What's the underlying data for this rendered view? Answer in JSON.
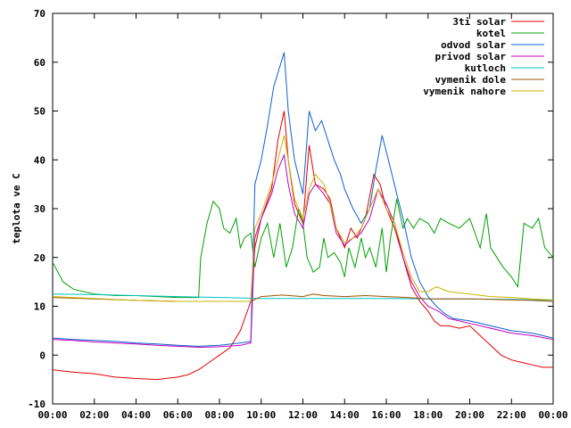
{
  "chart_data": {
    "type": "line",
    "title": "",
    "xlabel": "",
    "ylabel": "teplota ve C",
    "xlim": [
      0,
      24
    ],
    "ylim": [
      -10,
      70
    ],
    "grid": false,
    "legend_position": "top-right",
    "x_ticks": [
      "00:00",
      "02:00",
      "04:00",
      "06:00",
      "08:00",
      "10:00",
      "12:00",
      "14:00",
      "16:00",
      "18:00",
      "20:00",
      "22:00",
      "00:00"
    ],
    "y_ticks": [
      -10,
      0,
      10,
      20,
      30,
      40,
      50,
      60,
      70
    ],
    "series": [
      {
        "name": "3ti solar",
        "color": "#e00000",
        "points": [
          [
            0,
            -3
          ],
          [
            1,
            -3.5
          ],
          [
            2,
            -3.8
          ],
          [
            3,
            -4.5
          ],
          [
            4,
            -4.8
          ],
          [
            5,
            -5
          ],
          [
            6,
            -4.5
          ],
          [
            6.5,
            -4
          ],
          [
            7,
            -3
          ],
          [
            7.5,
            -1.5
          ],
          [
            8,
            0
          ],
          [
            8.5,
            1.5
          ],
          [
            9,
            5
          ],
          [
            9.5,
            11
          ],
          [
            9.7,
            22
          ],
          [
            10,
            28
          ],
          [
            10.5,
            34
          ],
          [
            10.8,
            44
          ],
          [
            11.1,
            50
          ],
          [
            11.3,
            40
          ],
          [
            11.6,
            31
          ],
          [
            12,
            27
          ],
          [
            12.3,
            43
          ],
          [
            12.6,
            35
          ],
          [
            13,
            34
          ],
          [
            13.3,
            32
          ],
          [
            13.6,
            26
          ],
          [
            14,
            22
          ],
          [
            14.3,
            26
          ],
          [
            14.6,
            24
          ],
          [
            15,
            28
          ],
          [
            15.4,
            37
          ],
          [
            15.7,
            35
          ],
          [
            16,
            30
          ],
          [
            16.4,
            26
          ],
          [
            16.8,
            20
          ],
          [
            17.2,
            14
          ],
          [
            17.6,
            11
          ],
          [
            18,
            9
          ],
          [
            18.3,
            7
          ],
          [
            18.6,
            6
          ],
          [
            19,
            6
          ],
          [
            19.5,
            5.5
          ],
          [
            20,
            6
          ],
          [
            20.5,
            4
          ],
          [
            21,
            2
          ],
          [
            21.5,
            0
          ],
          [
            22,
            -1
          ],
          [
            22.5,
            -1.5
          ],
          [
            23,
            -2
          ],
          [
            23.5,
            -2.5
          ],
          [
            24,
            -2.5
          ]
        ]
      },
      {
        "name": "kotel",
        "color": "#00a000",
        "points": [
          [
            0,
            19
          ],
          [
            0.5,
            15
          ],
          [
            1,
            13.5
          ],
          [
            2,
            12.5
          ],
          [
            3,
            12.2
          ],
          [
            4,
            12.2
          ],
          [
            5,
            12
          ],
          [
            6,
            11.8
          ],
          [
            7,
            11.8
          ],
          [
            7.1,
            20
          ],
          [
            7.4,
            27
          ],
          [
            7.7,
            31.5
          ],
          [
            8,
            30
          ],
          [
            8.2,
            26
          ],
          [
            8.5,
            25
          ],
          [
            8.8,
            28
          ],
          [
            9,
            22
          ],
          [
            9.2,
            24
          ],
          [
            9.5,
            25
          ],
          [
            9.7,
            18
          ],
          [
            10,
            24
          ],
          [
            10.3,
            27
          ],
          [
            10.6,
            20
          ],
          [
            10.9,
            27
          ],
          [
            11.2,
            18
          ],
          [
            11.5,
            22
          ],
          [
            11.8,
            30
          ],
          [
            12,
            27
          ],
          [
            12.2,
            20
          ],
          [
            12.5,
            17
          ],
          [
            12.8,
            18
          ],
          [
            13,
            24
          ],
          [
            13.2,
            20
          ],
          [
            13.5,
            21
          ],
          [
            13.8,
            19
          ],
          [
            14,
            16
          ],
          [
            14.2,
            22
          ],
          [
            14.5,
            18
          ],
          [
            14.8,
            24
          ],
          [
            15,
            20
          ],
          [
            15.2,
            22
          ],
          [
            15.5,
            18
          ],
          [
            15.8,
            26
          ],
          [
            16,
            17
          ],
          [
            16.2,
            24
          ],
          [
            16.5,
            32
          ],
          [
            16.8,
            26
          ],
          [
            17,
            28
          ],
          [
            17.3,
            26
          ],
          [
            17.6,
            28
          ],
          [
            18,
            27
          ],
          [
            18.3,
            25
          ],
          [
            18.6,
            28
          ],
          [
            19,
            27
          ],
          [
            19.5,
            26
          ],
          [
            20,
            28
          ],
          [
            20.5,
            22
          ],
          [
            20.8,
            29
          ],
          [
            21,
            22
          ],
          [
            21.3,
            20
          ],
          [
            21.6,
            18
          ],
          [
            22,
            16
          ],
          [
            22.3,
            14
          ],
          [
            22.6,
            27
          ],
          [
            23,
            26
          ],
          [
            23.3,
            28
          ],
          [
            23.6,
            22
          ],
          [
            24,
            20
          ]
        ]
      },
      {
        "name": "odvod solar",
        "color": "#1060d0",
        "points": [
          [
            0,
            3.5
          ],
          [
            1,
            3.2
          ],
          [
            2,
            3
          ],
          [
            3,
            2.8
          ],
          [
            4,
            2.5
          ],
          [
            5,
            2.3
          ],
          [
            6,
            2
          ],
          [
            7,
            1.8
          ],
          [
            8,
            2
          ],
          [
            9,
            2.5
          ],
          [
            9.5,
            2.8
          ],
          [
            9.7,
            35
          ],
          [
            10,
            40
          ],
          [
            10.3,
            47
          ],
          [
            10.6,
            55
          ],
          [
            11.1,
            62
          ],
          [
            11.3,
            50
          ],
          [
            11.6,
            40
          ],
          [
            12,
            33
          ],
          [
            12.3,
            50
          ],
          [
            12.6,
            46
          ],
          [
            12.9,
            48
          ],
          [
            13.2,
            44
          ],
          [
            13.5,
            40
          ],
          [
            13.8,
            37
          ],
          [
            14,
            34
          ],
          [
            14.4,
            30
          ],
          [
            14.8,
            27
          ],
          [
            15.2,
            30
          ],
          [
            15.5,
            38
          ],
          [
            15.8,
            45
          ],
          [
            16.1,
            40
          ],
          [
            16.5,
            33
          ],
          [
            16.8,
            28
          ],
          [
            17.2,
            20
          ],
          [
            17.6,
            15
          ],
          [
            18,
            12
          ],
          [
            18.4,
            10
          ],
          [
            18.8,
            8.5
          ],
          [
            19.2,
            7.5
          ],
          [
            20,
            7
          ],
          [
            21,
            6
          ],
          [
            22,
            5
          ],
          [
            23,
            4.5
          ],
          [
            24,
            3.5
          ]
        ]
      },
      {
        "name": "privod solar",
        "color": "#c000c0",
        "points": [
          [
            0,
            3.2
          ],
          [
            1,
            3
          ],
          [
            2,
            2.7
          ],
          [
            3,
            2.5
          ],
          [
            4,
            2.3
          ],
          [
            5,
            2
          ],
          [
            6,
            1.8
          ],
          [
            7,
            1.6
          ],
          [
            8,
            1.7
          ],
          [
            9,
            2
          ],
          [
            9.5,
            2.5
          ],
          [
            9.7,
            24
          ],
          [
            10,
            28
          ],
          [
            10.5,
            33
          ],
          [
            10.8,
            38
          ],
          [
            11.1,
            41
          ],
          [
            11.3,
            35
          ],
          [
            11.6,
            29
          ],
          [
            12,
            26
          ],
          [
            12.3,
            33
          ],
          [
            12.6,
            35
          ],
          [
            13,
            33
          ],
          [
            13.3,
            31
          ],
          [
            13.6,
            25
          ],
          [
            14,
            22.5
          ],
          [
            14.4,
            24
          ],
          [
            14.8,
            25
          ],
          [
            15.2,
            28
          ],
          [
            15.6,
            34
          ],
          [
            16,
            31
          ],
          [
            16.4,
            27
          ],
          [
            16.8,
            20
          ],
          [
            17.2,
            15
          ],
          [
            17.6,
            12
          ],
          [
            18,
            10
          ],
          [
            18.5,
            9
          ],
          [
            19,
            7.5
          ],
          [
            19.5,
            7
          ],
          [
            20,
            6.5
          ],
          [
            21,
            5.5
          ],
          [
            22,
            4.5
          ],
          [
            23,
            4
          ],
          [
            24,
            3.2
          ]
        ]
      },
      {
        "name": "kutloch",
        "color": "#00c0c0",
        "points": [
          [
            0,
            12.5
          ],
          [
            2,
            12.4
          ],
          [
            4,
            12.2
          ],
          [
            6,
            12
          ],
          [
            8,
            11.8
          ],
          [
            10,
            11.6
          ],
          [
            12,
            11.6
          ],
          [
            14,
            11.6
          ],
          [
            16,
            11.6
          ],
          [
            18,
            11.5
          ],
          [
            20,
            11.5
          ],
          [
            22,
            11.4
          ],
          [
            24,
            11.2
          ]
        ]
      },
      {
        "name": "vymenik dole",
        "color": "#a05000",
        "points": [
          [
            0,
            11.8
          ],
          [
            2,
            11.5
          ],
          [
            4,
            11.2
          ],
          [
            6,
            11
          ],
          [
            8,
            11
          ],
          [
            9.5,
            11
          ],
          [
            10,
            12
          ],
          [
            11,
            12.3
          ],
          [
            12,
            12
          ],
          [
            12.5,
            12.5
          ],
          [
            13,
            12.2
          ],
          [
            14,
            12
          ],
          [
            15,
            12.2
          ],
          [
            16,
            12
          ],
          [
            17,
            11.8
          ],
          [
            18,
            11.5
          ],
          [
            19,
            11.5
          ],
          [
            20,
            11.5
          ],
          [
            21,
            11.4
          ],
          [
            22,
            11.3
          ],
          [
            23,
            11.2
          ],
          [
            24,
            11
          ]
        ]
      },
      {
        "name": "vymenik nahore",
        "color": "#c8b400",
        "points": [
          [
            0,
            12
          ],
          [
            2,
            11.6
          ],
          [
            4,
            11.2
          ],
          [
            6,
            11
          ],
          [
            8,
            11
          ],
          [
            9.5,
            11
          ],
          [
            9.7,
            26
          ],
          [
            10,
            29
          ],
          [
            10.5,
            35
          ],
          [
            10.8,
            40
          ],
          [
            11.1,
            45
          ],
          [
            11.3,
            40
          ],
          [
            11.6,
            32
          ],
          [
            12,
            28
          ],
          [
            12.3,
            34
          ],
          [
            12.6,
            37
          ],
          [
            13,
            35
          ],
          [
            13.3,
            31
          ],
          [
            13.6,
            26
          ],
          [
            14,
            23
          ],
          [
            14.4,
            24
          ],
          [
            14.8,
            26
          ],
          [
            15.2,
            30
          ],
          [
            15.6,
            34
          ],
          [
            16,
            30
          ],
          [
            16.4,
            27
          ],
          [
            16.8,
            21
          ],
          [
            17.2,
            16
          ],
          [
            17.6,
            13
          ],
          [
            18,
            13
          ],
          [
            18.4,
            14
          ],
          [
            19,
            13
          ],
          [
            20,
            12.5
          ],
          [
            21,
            12
          ],
          [
            22,
            11.8
          ],
          [
            23,
            11.5
          ],
          [
            24,
            11.3
          ]
        ]
      }
    ]
  }
}
